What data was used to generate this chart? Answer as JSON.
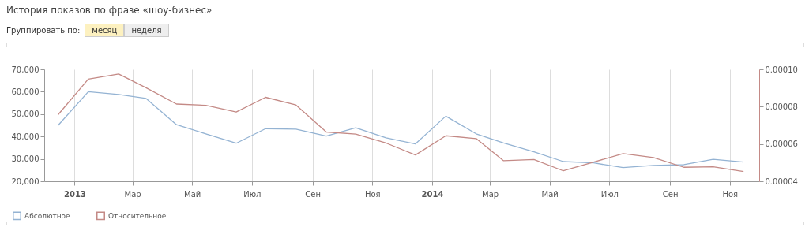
{
  "chart_data": {
    "type": "line",
    "title": "История показов по фразе «шоу-бизнес»",
    "annotations": [
      "Группировать по:",
      "месяц",
      "неделя"
    ],
    "x": [
      "2012-12-15",
      "2013-01-15",
      "2013-02-15",
      "2013-03-15",
      "2013-04-15",
      "2013-05-15",
      "2013-06-15",
      "2013-07-15",
      "2013-08-15",
      "2013-09-15",
      "2013-10-15",
      "2013-11-15",
      "2013-12-15",
      "2014-01-15",
      "2014-02-15",
      "2014-03-15",
      "2014-04-15",
      "2014-05-15",
      "2014-06-15",
      "2014-07-15",
      "2014-08-15",
      "2014-09-15",
      "2014-10-15",
      "2014-11-15"
    ],
    "xlim": [
      "2012-12-01",
      "2014-12-01"
    ],
    "xticks": [
      {
        "value": "2013-01-01",
        "label": "2013"
      },
      {
        "value": "2013-03-01",
        "label": "Мар"
      },
      {
        "value": "2013-05-01",
        "label": "Май"
      },
      {
        "value": "2013-07-01",
        "label": "Июл"
      },
      {
        "value": "2013-09-01",
        "label": "Сен"
      },
      {
        "value": "2013-11-01",
        "label": "Ноя"
      },
      {
        "value": "2014-01-01",
        "label": "2014"
      },
      {
        "value": "2014-03-01",
        "label": "Мар"
      },
      {
        "value": "2014-05-01",
        "label": "Май"
      },
      {
        "value": "2014-07-01",
        "label": "Июл"
      },
      {
        "value": "2014-09-01",
        "label": "Сен"
      },
      {
        "value": "2014-11-01",
        "label": "Ноя"
      }
    ],
    "ylim": [
      20000,
      70000
    ],
    "yticks": [
      {
        "value": 20000,
        "label": "20,000"
      },
      {
        "value": 30000,
        "label": "30,000"
      },
      {
        "value": 40000,
        "label": "40,000"
      },
      {
        "value": 50000,
        "label": "50,000"
      },
      {
        "value": 60000,
        "label": "60,000"
      },
      {
        "value": 70000,
        "label": "70,000"
      }
    ],
    "y2lim": [
      4e-05,
      0.0001
    ],
    "y2ticks": [
      {
        "value": 4e-05,
        "label": "0.00004"
      },
      {
        "value": 6e-05,
        "label": "0.00006"
      },
      {
        "value": 8e-05,
        "label": "0.00008"
      },
      {
        "value": 0.0001,
        "label": "0.00010"
      }
    ],
    "grid": "x",
    "legend": "bottom left",
    "series": [
      {
        "name": "Абсолютное",
        "color": "#94b3d3",
        "values": [
          44900,
          60000,
          58800,
          57000,
          45300,
          41200,
          37000,
          43500,
          43300,
          40200,
          43900,
          39400,
          36700,
          49100,
          41200,
          37100,
          33200,
          28800,
          28200,
          26100,
          27100,
          27400,
          29800,
          28600
        ]
      },
      {
        "name": "Относительное",
        "color": "#c48a86",
        "axis": "y2",
        "values": [
          7.56e-05,
          9.48e-05,
          9.75e-05,
          9.01e-05,
          8.14e-05,
          8.07e-05,
          7.71e-05,
          8.5e-05,
          8.09e-05,
          6.64e-05,
          6.53e-05,
          6.05e-05,
          5.41e-05,
          6.44e-05,
          6.29e-05,
          5.1e-05,
          5.17e-05,
          4.56e-05,
          5.03e-05,
          5.48e-05,
          5.27e-05,
          4.75e-05,
          4.78e-05,
          4.52e-05
        ]
      }
    ]
  }
}
